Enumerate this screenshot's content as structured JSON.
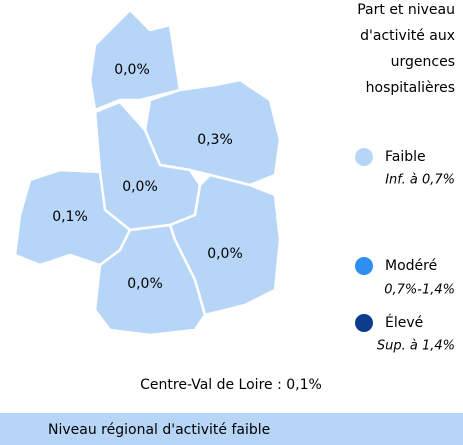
{
  "title_lines": [
    "Part et niveau",
    "d'activité aux",
    "urgences",
    "hospitalières"
  ],
  "regions": [
    {
      "value": "0,0%"
    },
    {
      "value": "0,3%"
    },
    {
      "value": "0,0%"
    },
    {
      "value": "0,1%"
    },
    {
      "value": "0,0%"
    },
    {
      "value": "0,0%"
    }
  ],
  "legend": [
    {
      "label": "Faible",
      "range": "Inf. à 0,7%"
    },
    {
      "label": "Modéré",
      "range": "0,7%-1,4%"
    },
    {
      "label": "Élevé",
      "range": "Sup. à 1,4%"
    }
  ],
  "summary": "Centre-Val de Loire : 0,1%",
  "banner": "Niveau régional d'activité faible"
}
